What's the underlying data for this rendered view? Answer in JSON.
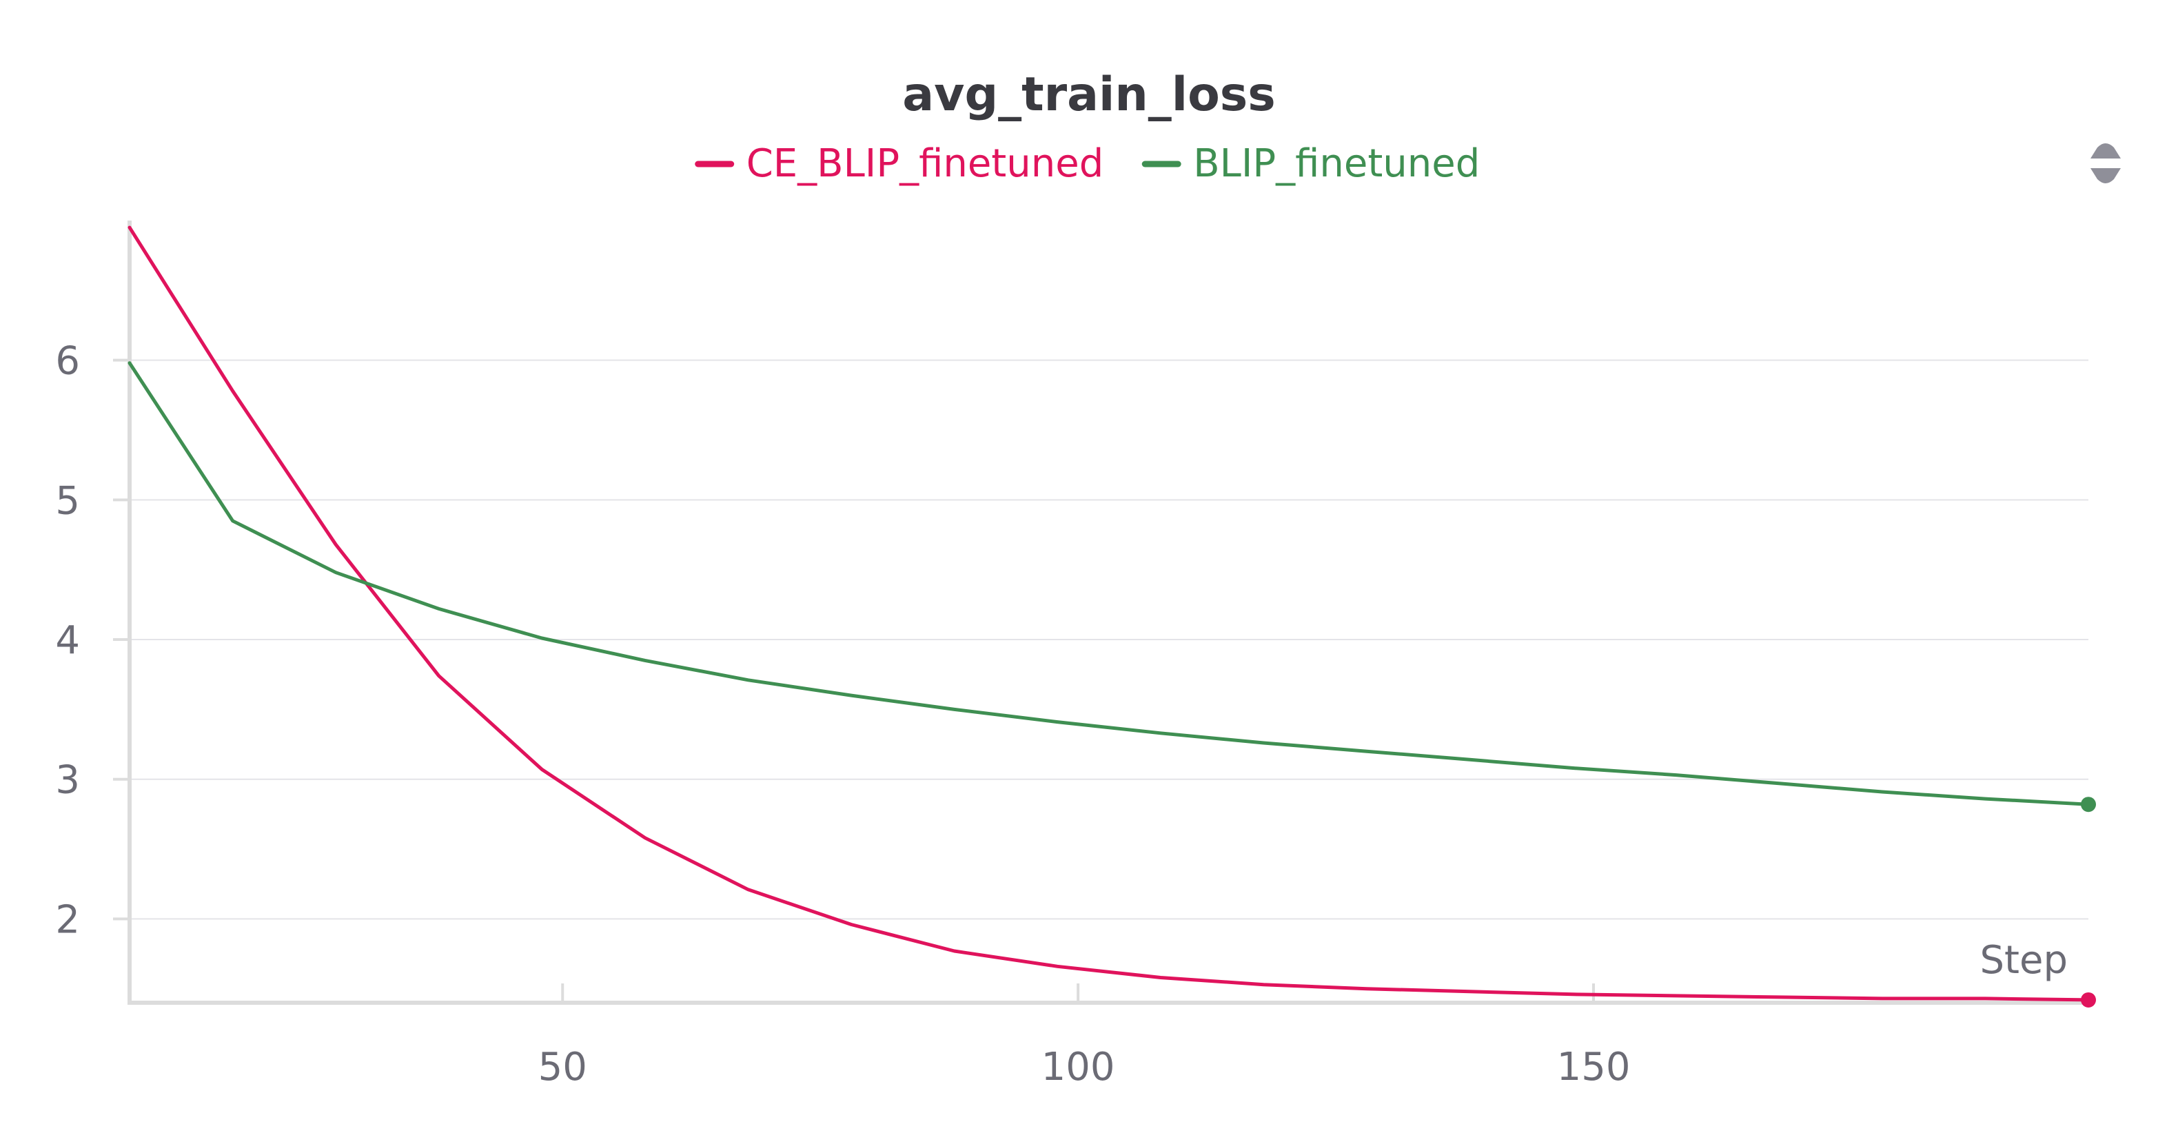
{
  "chart_data": {
    "type": "line",
    "title": "avg_train_loss",
    "xlabel": "Step",
    "ylabel": "",
    "xlim": [
      8,
      198
    ],
    "ylim": [
      1.4,
      7.0
    ],
    "x_ticks": [
      50,
      100,
      150
    ],
    "y_ticks": [
      2,
      3,
      4,
      5,
      6
    ],
    "grid": true,
    "legend": "top-center",
    "series": [
      {
        "name": "CE_BLIP_finetuned",
        "color": "#e0135c",
        "x": [
          8,
          18,
          28,
          38,
          48,
          58,
          68,
          78,
          88,
          98,
          108,
          118,
          128,
          138,
          148,
          158,
          168,
          178,
          188,
          198
        ],
        "y": [
          6.95,
          5.78,
          4.68,
          3.74,
          3.07,
          2.58,
          2.21,
          1.96,
          1.77,
          1.66,
          1.58,
          1.53,
          1.5,
          1.48,
          1.46,
          1.45,
          1.44,
          1.43,
          1.43,
          1.42
        ]
      },
      {
        "name": "BLIP_finetuned",
        "color": "#3f8f52",
        "x": [
          8,
          18,
          28,
          38,
          48,
          58,
          68,
          78,
          88,
          98,
          108,
          118,
          128,
          138,
          148,
          158,
          168,
          178,
          188,
          198
        ],
        "y": [
          5.98,
          4.85,
          4.48,
          4.22,
          4.01,
          3.85,
          3.71,
          3.6,
          3.5,
          3.41,
          3.33,
          3.26,
          3.2,
          3.14,
          3.08,
          3.03,
          2.97,
          2.91,
          2.86,
          2.82
        ]
      }
    ]
  },
  "controls": {
    "legend_scroll_icon": "up-down-arrows-icon"
  }
}
